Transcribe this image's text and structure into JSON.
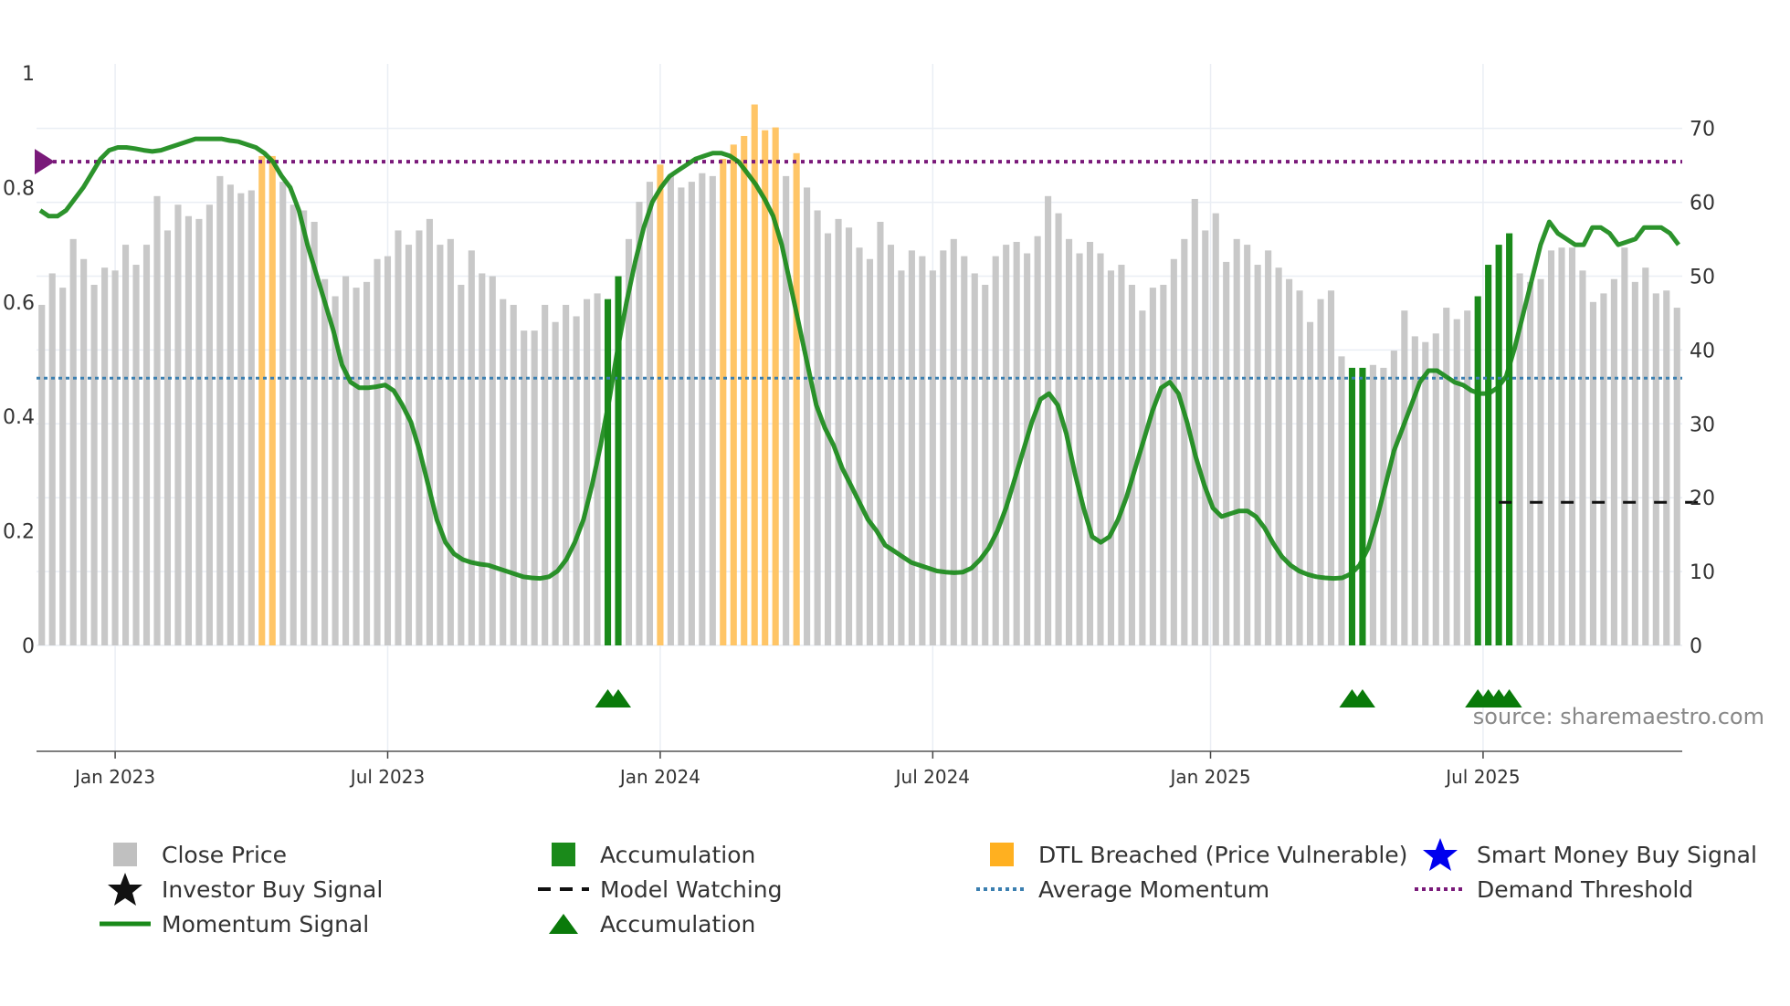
{
  "chart_data": {
    "type": "bar+line",
    "source": "source: sharemaestro.com",
    "left_axis": {
      "ticks": [
        "0",
        "0.2",
        "0.4",
        "0.6",
        "0.8",
        "1"
      ],
      "ylim": [
        0,
        1
      ]
    },
    "right_axis": {
      "ticks": [
        "0",
        "10",
        "20",
        "30",
        "40",
        "50",
        "60",
        "70"
      ],
      "ylim": [
        0,
        77.5
      ]
    },
    "x_ticks": [
      "Jan 2023",
      "Jul 2023",
      "Jan 2024",
      "Jul 2024",
      "Jan 2025",
      "Jul 2025"
    ],
    "bars": {
      "name": "Close Price",
      "values": [
        0.595,
        0.65,
        0.625,
        0.71,
        0.675,
        0.63,
        0.66,
        0.655,
        0.7,
        0.665,
        0.7,
        0.785,
        0.725,
        0.77,
        0.75,
        0.745,
        0.77,
        0.82,
        0.805,
        0.79,
        0.795,
        0.855,
        0.855,
        0.81,
        0.77,
        0.76,
        0.74,
        0.64,
        0.61,
        0.645,
        0.625,
        0.635,
        0.675,
        0.68,
        0.725,
        0.7,
        0.725,
        0.745,
        0.7,
        0.71,
        0.63,
        0.69,
        0.65,
        0.645,
        0.605,
        0.595,
        0.55,
        0.55,
        0.595,
        0.565,
        0.595,
        0.575,
        0.605,
        0.615,
        0.605,
        0.645,
        0.71,
        0.775,
        0.81,
        0.84,
        0.82,
        0.8,
        0.81,
        0.825,
        0.82,
        0.85,
        0.875,
        0.89,
        0.945,
        0.9,
        0.905,
        0.82,
        0.86,
        0.8,
        0.76,
        0.72,
        0.745,
        0.73,
        0.695,
        0.675,
        0.74,
        0.7,
        0.655,
        0.69,
        0.68,
        0.655,
        0.69,
        0.71,
        0.68,
        0.65,
        0.63,
        0.68,
        0.7,
        0.705,
        0.685,
        0.715,
        0.785,
        0.755,
        0.71,
        0.685,
        0.705,
        0.685,
        0.655,
        0.665,
        0.63,
        0.585,
        0.625,
        0.63,
        0.675,
        0.71,
        0.78,
        0.725,
        0.755,
        0.67,
        0.71,
        0.7,
        0.665,
        0.69,
        0.66,
        0.64,
        0.62,
        0.565,
        0.605,
        0.62,
        0.505,
        0.485,
        0.485,
        0.49,
        0.485,
        0.515,
        0.585,
        0.54,
        0.53,
        0.545,
        0.59,
        0.57,
        0.585,
        0.61,
        0.665,
        0.7,
        0.72,
        0.65,
        0.635,
        0.64,
        0.69,
        0.695,
        0.695,
        0.655,
        0.6,
        0.615,
        0.64,
        0.695,
        0.635,
        0.66,
        0.615,
        0.62,
        0.59
      ],
      "accumulation_indices": [
        54,
        55,
        125,
        126,
        137,
        138,
        139,
        140
      ],
      "dtl_breached_indices": [
        21,
        22,
        59,
        65,
        66,
        67,
        68,
        69,
        70,
        72
      ]
    },
    "momentum": {
      "name": "Momentum Signal",
      "values": [
        0.76,
        0.75,
        0.75,
        0.76,
        0.78,
        0.8,
        0.825,
        0.85,
        0.865,
        0.87,
        0.87,
        0.868,
        0.865,
        0.863,
        0.865,
        0.87,
        0.875,
        0.88,
        0.885,
        0.885,
        0.885,
        0.885,
        0.882,
        0.88,
        0.875,
        0.87,
        0.86,
        0.845,
        0.82,
        0.8,
        0.76,
        0.7,
        0.65,
        0.6,
        0.55,
        0.49,
        0.46,
        0.45,
        0.45,
        0.452,
        0.455,
        0.445,
        0.42,
        0.39,
        0.34,
        0.28,
        0.22,
        0.18,
        0.16,
        0.15,
        0.145,
        0.142,
        0.14,
        0.135,
        0.13,
        0.125,
        0.12,
        0.118,
        0.117,
        0.12,
        0.13,
        0.15,
        0.18,
        0.22,
        0.28,
        0.35,
        0.43,
        0.52,
        0.6,
        0.67,
        0.73,
        0.775,
        0.8,
        0.82,
        0.83,
        0.84,
        0.85,
        0.855,
        0.86,
        0.86,
        0.855,
        0.845,
        0.825,
        0.805,
        0.78,
        0.75,
        0.7,
        0.63,
        0.56,
        0.49,
        0.42,
        0.38,
        0.35,
        0.31,
        0.28,
        0.25,
        0.22,
        0.2,
        0.175,
        0.165,
        0.155,
        0.145,
        0.14,
        0.135,
        0.13,
        0.128,
        0.127,
        0.128,
        0.135,
        0.15,
        0.17,
        0.2,
        0.24,
        0.29,
        0.34,
        0.39,
        0.43,
        0.44,
        0.42,
        0.37,
        0.3,
        0.24,
        0.19,
        0.18,
        0.19,
        0.22,
        0.26,
        0.31,
        0.36,
        0.41,
        0.45,
        0.46,
        0.44,
        0.39,
        0.33,
        0.28,
        0.24,
        0.225,
        0.23,
        0.235,
        0.235,
        0.225,
        0.205,
        0.178,
        0.155,
        0.14,
        0.13,
        0.124,
        0.12,
        0.118,
        0.117,
        0.118,
        0.125,
        0.14,
        0.17,
        0.22,
        0.28,
        0.34,
        0.38,
        0.42,
        0.46,
        0.48,
        0.48,
        0.47,
        0.46,
        0.455,
        0.445,
        0.44,
        0.44,
        0.45,
        0.47,
        0.52,
        0.58,
        0.64,
        0.7,
        0.74,
        0.72,
        0.71,
        0.7,
        0.7,
        0.73,
        0.73,
        0.72,
        0.7,
        0.705,
        0.71,
        0.73,
        0.73,
        0.73,
        0.72,
        0.7
      ],
      "color": "#1a8a1a"
    },
    "average_momentum": {
      "name": "Average Momentum",
      "value": 0.467,
      "color": "#3b7fb0"
    },
    "demand_threshold": {
      "name": "Demand Threshold",
      "value": 0.845,
      "color": "#7a1a7a"
    },
    "model_watching": {
      "name": "Model Watching",
      "value": 0.25,
      "start_index": 139,
      "end_index": 159
    },
    "accumulation_markers": [
      54,
      55,
      125,
      126,
      137,
      138,
      139,
      140
    ],
    "colors": {
      "close_price": "#c8c8c8",
      "accumulation": "#1a8a1a",
      "dtl": "#ffc566",
      "smart_money": "#0000ee"
    }
  },
  "legend": {
    "close_price": "Close Price",
    "accumulation_bar": "Accumulation",
    "dtl": "DTL Breached (Price Vulnerable)",
    "smart_money": "Smart Money Buy Signal",
    "investor_buy": "Investor Buy Signal",
    "model_watching": "Model Watching",
    "average_momentum": "Average Momentum",
    "demand_threshold": "Demand Threshold",
    "momentum": "Momentum Signal",
    "accumulation_marker": "Accumulation"
  }
}
